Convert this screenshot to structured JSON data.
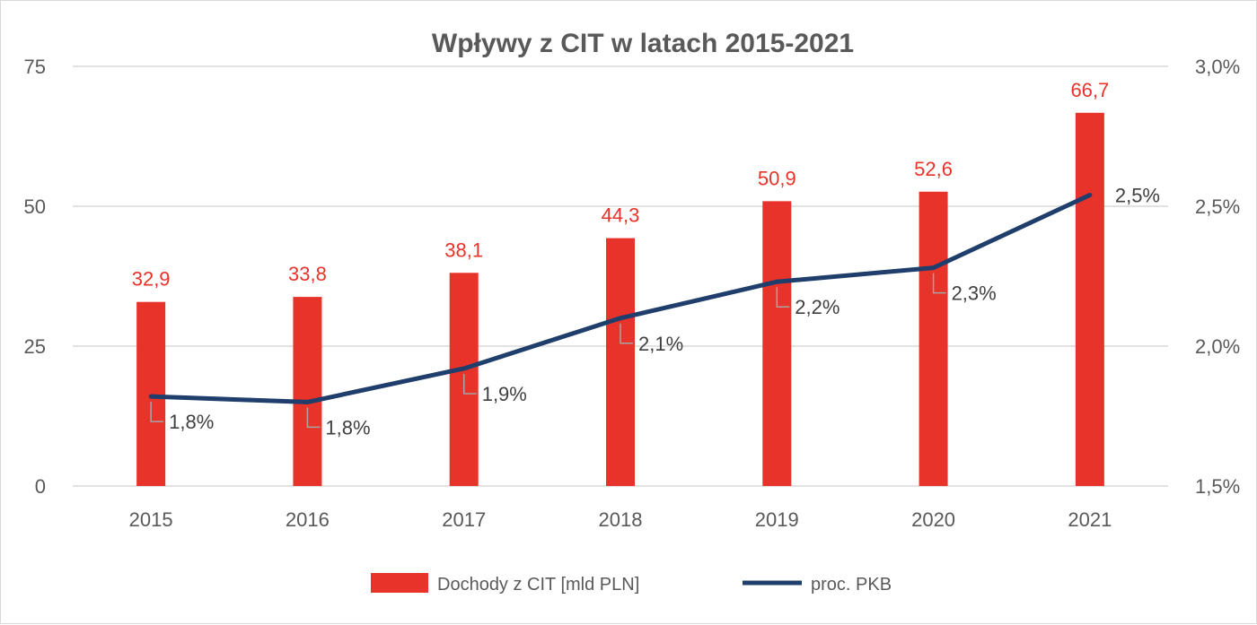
{
  "chart_data": {
    "type": "bar",
    "title": "Wpływy z CIT w latach 2015-2021",
    "categories": [
      "2015",
      "2016",
      "2017",
      "2018",
      "2019",
      "2020",
      "2021"
    ],
    "series": [
      {
        "name": "Dochody z CIT [mld PLN]",
        "type": "bar",
        "axis": "left",
        "color": "#e8332a",
        "values": [
          32.9,
          33.8,
          38.1,
          44.3,
          50.9,
          52.6,
          66.7
        ],
        "labels": [
          "32,9",
          "33,8",
          "38,1",
          "44,3",
          "50,9",
          "52,6",
          "66,7"
        ]
      },
      {
        "name": "proc. PKB",
        "type": "line",
        "axis": "right",
        "color": "#1f3e6b",
        "values": [
          1.82,
          1.8,
          1.92,
          2.1,
          2.23,
          2.28,
          2.54
        ],
        "labels": [
          "1,8%",
          "1,8%",
          "1,9%",
          "2,1%",
          "2,2%",
          "2,3%",
          "2,5%"
        ]
      }
    ],
    "y_left": {
      "min": 0,
      "max": 75,
      "ticks": [
        0,
        25,
        50,
        75
      ],
      "tick_labels": [
        "0",
        "25",
        "50",
        "75"
      ]
    },
    "y_right": {
      "min": 1.5,
      "max": 3.0,
      "ticks": [
        1.5,
        2.0,
        2.5,
        3.0
      ],
      "tick_labels": [
        "1,5%",
        "2,0%",
        "2,5%",
        "3,0%"
      ]
    },
    "grid": true,
    "legend_position": "bottom"
  }
}
